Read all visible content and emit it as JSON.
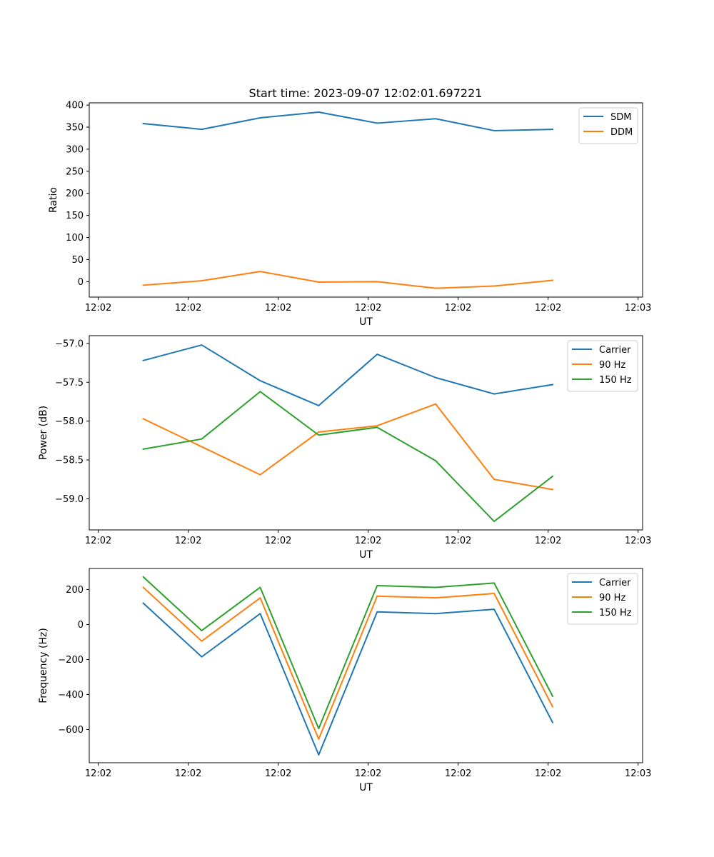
{
  "figure_title": "Start time: 2023-09-07 12:02:01.697221",
  "chart_data": [
    {
      "type": "line",
      "title": "Start time: 2023-09-07 12:02:01.697221",
      "xlabel": "UT",
      "ylabel": "Ratio",
      "x": [
        0.5,
        1.15,
        1.8,
        2.45,
        3.1,
        3.75,
        4.4,
        5.05
      ],
      "xlim": [
        -0.1,
        6.05
      ],
      "xticks": [
        0,
        1,
        2,
        3,
        4,
        5,
        6
      ],
      "xtick_labels": [
        "12:02",
        "12:02",
        "12:02",
        "12:02",
        "12:02",
        "12:02",
        "12:03"
      ],
      "ylim": [
        -35,
        405
      ],
      "yticks": [
        0,
        50,
        100,
        150,
        200,
        250,
        300,
        350,
        400
      ],
      "ytick_labels": [
        "0",
        "50",
        "100",
        "150",
        "200",
        "250",
        "300",
        "350",
        "400"
      ],
      "legend_position": "top-right",
      "series": [
        {
          "name": "SDM",
          "color": "#1f77b4",
          "values": [
            358,
            345,
            371,
            384,
            359,
            369,
            342,
            345
          ]
        },
        {
          "name": "DDM",
          "color": "#ff7f0e",
          "values": [
            -8,
            2,
            23,
            -1,
            0,
            -15,
            -10,
            3
          ]
        }
      ]
    },
    {
      "type": "line",
      "xlabel": "UT",
      "ylabel": "Power (dB)",
      "x": [
        0.5,
        1.15,
        1.8,
        2.45,
        3.1,
        3.75,
        4.4,
        5.05
      ],
      "xlim": [
        -0.1,
        6.05
      ],
      "xticks": [
        0,
        1,
        2,
        3,
        4,
        5,
        6
      ],
      "xtick_labels": [
        "12:02",
        "12:02",
        "12:02",
        "12:02",
        "12:02",
        "12:02",
        "12:03"
      ],
      "ylim": [
        -59.4,
        -56.9
      ],
      "yticks": [
        -59.0,
        -58.5,
        -58.0,
        -57.5,
        -57.0
      ],
      "ytick_labels": [
        "−59.0",
        "−58.5",
        "−58.0",
        "−57.5",
        "−57.0"
      ],
      "legend_position": "top-right",
      "series": [
        {
          "name": "Carrier",
          "color": "#1f77b4",
          "values": [
            -57.22,
            -57.02,
            -57.48,
            -57.8,
            -57.14,
            -57.44,
            -57.65,
            -57.53
          ]
        },
        {
          "name": "90 Hz",
          "color": "#ff7f0e",
          "values": [
            -57.97,
            -58.33,
            -58.69,
            -58.14,
            -58.06,
            -57.78,
            -58.75,
            -58.88
          ]
        },
        {
          "name": "150 Hz",
          "color": "#2ca02c",
          "values": [
            -58.36,
            -58.23,
            -57.62,
            -58.18,
            -58.08,
            -58.51,
            -59.29,
            -58.71
          ]
        }
      ]
    },
    {
      "type": "line",
      "xlabel": "UT",
      "ylabel": "Frequency (Hz)",
      "x": [
        0.5,
        1.15,
        1.8,
        2.45,
        3.1,
        3.75,
        4.4,
        5.05
      ],
      "xlim": [
        -0.1,
        6.05
      ],
      "xticks": [
        0,
        1,
        2,
        3,
        4,
        5,
        6
      ],
      "xtick_labels": [
        "12:02",
        "12:02",
        "12:02",
        "12:02",
        "12:02",
        "12:02",
        "12:03"
      ],
      "ylim": [
        -790,
        320
      ],
      "yticks": [
        -600,
        -400,
        -200,
        0,
        200
      ],
      "ytick_labels": [
        "−600",
        "−400",
        "−200",
        "0",
        "200"
      ],
      "legend_position": "top-right",
      "series": [
        {
          "name": "Carrier",
          "color": "#1f77b4",
          "values": [
            122,
            -185,
            62,
            -745,
            72,
            62,
            87,
            -560
          ]
        },
        {
          "name": "90 Hz",
          "color": "#ff7f0e",
          "values": [
            212,
            -95,
            152,
            -655,
            162,
            152,
            177,
            -470
          ]
        },
        {
          "name": "150 Hz",
          "color": "#2ca02c",
          "values": [
            272,
            -35,
            212,
            -595,
            222,
            212,
            237,
            -410
          ]
        }
      ]
    }
  ]
}
